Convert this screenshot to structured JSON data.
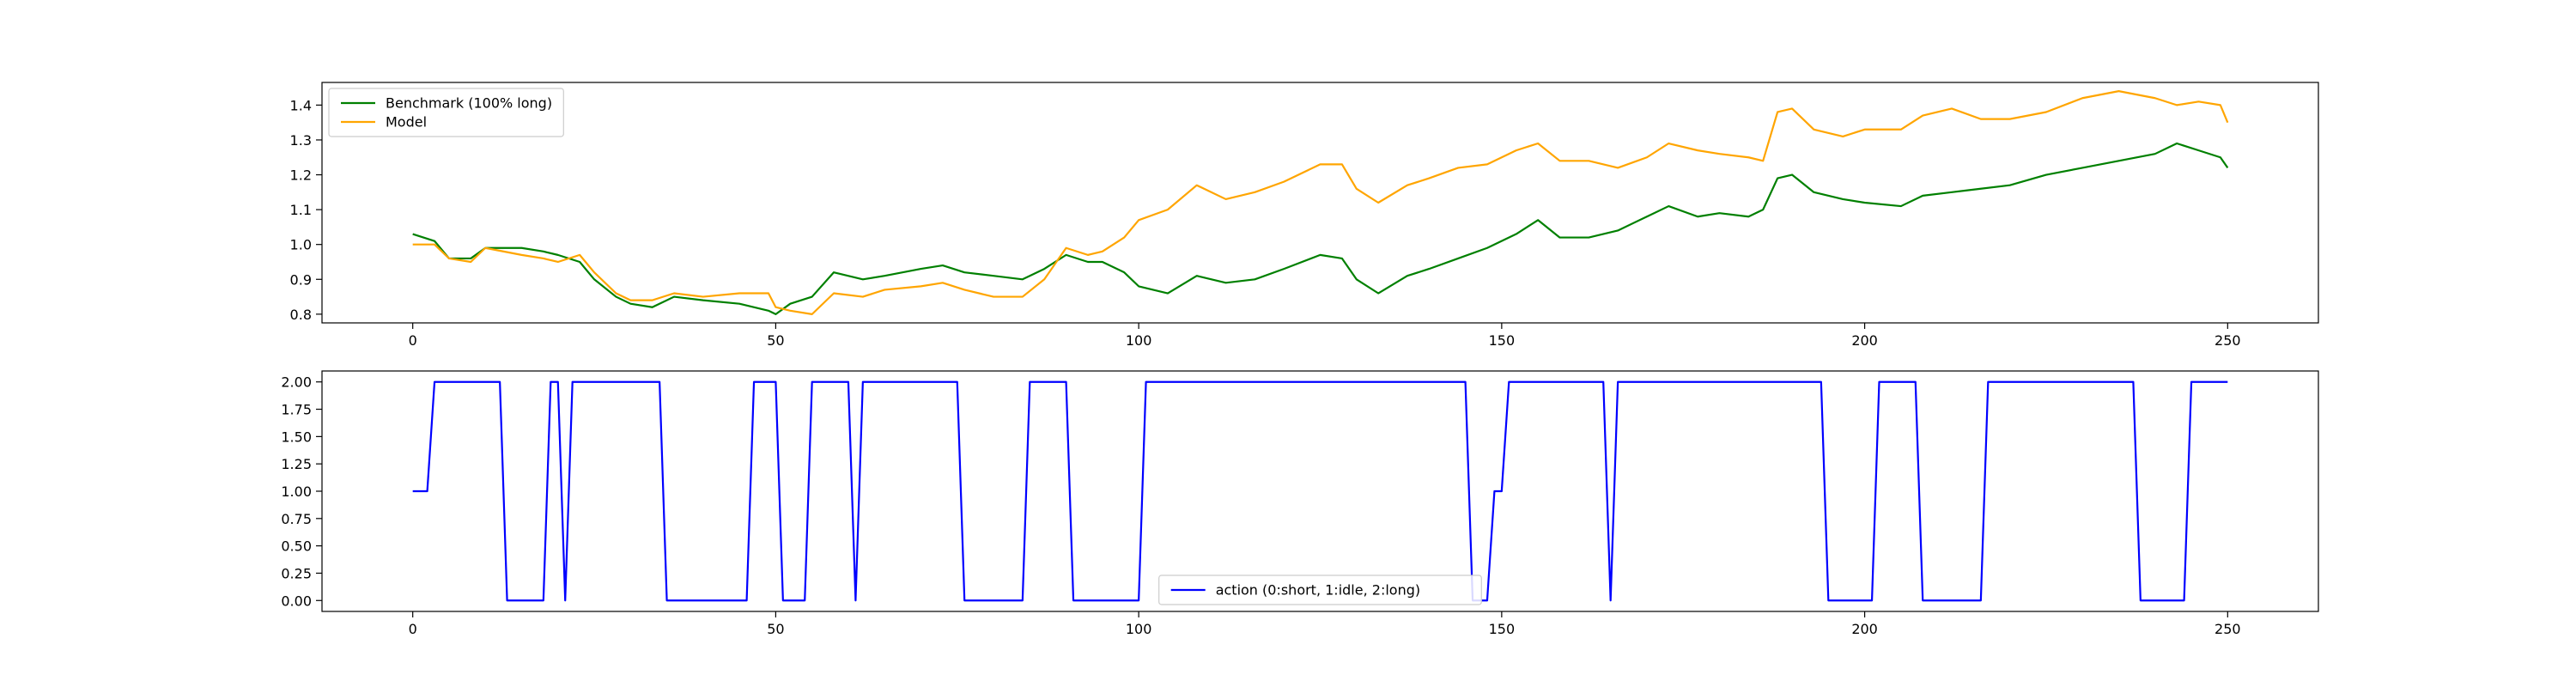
{
  "chart_data": [
    {
      "type": "line",
      "xlim": [
        -12.5,
        262.5
      ],
      "ylim": [
        0.775,
        1.465
      ],
      "xticks": [
        0,
        50,
        100,
        150,
        200,
        250
      ],
      "xtick_labels": [
        "0",
        "50",
        "100",
        "150",
        "200",
        "250"
      ],
      "yticks": [
        0.8,
        0.9,
        1.0,
        1.1,
        1.2,
        1.3,
        1.4
      ],
      "ytick_labels": [
        "0.8",
        "0.9",
        "1.0",
        "1.1",
        "1.2",
        "1.3",
        "1.4"
      ],
      "legend_position": "top-left",
      "grid": false,
      "series": [
        {
          "name": "Benchmark (100% long)",
          "color": "#008000",
          "points": [
            [
              0,
              1.03
            ],
            [
              3,
              1.01
            ],
            [
              5,
              0.96
            ],
            [
              8,
              0.96
            ],
            [
              10,
              0.99
            ],
            [
              15,
              0.99
            ],
            [
              18,
              0.98
            ],
            [
              20,
              0.97
            ],
            [
              23,
              0.95
            ],
            [
              25,
              0.9
            ],
            [
              28,
              0.85
            ],
            [
              30,
              0.83
            ],
            [
              33,
              0.82
            ],
            [
              36,
              0.85
            ],
            [
              40,
              0.84
            ],
            [
              45,
              0.83
            ],
            [
              49,
              0.81
            ],
            [
              50,
              0.8
            ],
            [
              52,
              0.83
            ],
            [
              55,
              0.85
            ],
            [
              58,
              0.92
            ],
            [
              62,
              0.9
            ],
            [
              65,
              0.91
            ],
            [
              70,
              0.93
            ],
            [
              73,
              0.94
            ],
            [
              76,
              0.92
            ],
            [
              80,
              0.91
            ],
            [
              84,
              0.9
            ],
            [
              87,
              0.93
            ],
            [
              90,
              0.97
            ],
            [
              93,
              0.95
            ],
            [
              95,
              0.95
            ],
            [
              98,
              0.92
            ],
            [
              100,
              0.88
            ],
            [
              104,
              0.86
            ],
            [
              108,
              0.91
            ],
            [
              112,
              0.89
            ],
            [
              116,
              0.9
            ],
            [
              120,
              0.93
            ],
            [
              125,
              0.97
            ],
            [
              128,
              0.96
            ],
            [
              130,
              0.9
            ],
            [
              133,
              0.86
            ],
            [
              137,
              0.91
            ],
            [
              140,
              0.93
            ],
            [
              144,
              0.96
            ],
            [
              148,
              0.99
            ],
            [
              152,
              1.03
            ],
            [
              155,
              1.07
            ],
            [
              158,
              1.02
            ],
            [
              162,
              1.02
            ],
            [
              166,
              1.04
            ],
            [
              170,
              1.08
            ],
            [
              173,
              1.11
            ],
            [
              177,
              1.08
            ],
            [
              180,
              1.09
            ],
            [
              184,
              1.08
            ],
            [
              186,
              1.1
            ],
            [
              188,
              1.19
            ],
            [
              190,
              1.2
            ],
            [
              193,
              1.15
            ],
            [
              197,
              1.13
            ],
            [
              200,
              1.12
            ],
            [
              205,
              1.11
            ],
            [
              208,
              1.14
            ],
            [
              212,
              1.15
            ],
            [
              216,
              1.16
            ],
            [
              220,
              1.17
            ],
            [
              225,
              1.2
            ],
            [
              230,
              1.22
            ],
            [
              235,
              1.24
            ],
            [
              240,
              1.26
            ],
            [
              243,
              1.29
            ],
            [
              246,
              1.27
            ],
            [
              249,
              1.25
            ],
            [
              250,
              1.22
            ]
          ]
        },
        {
          "name": "Model",
          "color": "#ffa500",
          "points": [
            [
              0,
              1.0
            ],
            [
              3,
              1.0
            ],
            [
              5,
              0.96
            ],
            [
              8,
              0.95
            ],
            [
              10,
              0.99
            ],
            [
              15,
              0.97
            ],
            [
              18,
              0.96
            ],
            [
              20,
              0.95
            ],
            [
              23,
              0.97
            ],
            [
              25,
              0.92
            ],
            [
              28,
              0.86
            ],
            [
              30,
              0.84
            ],
            [
              33,
              0.84
            ],
            [
              36,
              0.86
            ],
            [
              40,
              0.85
            ],
            [
              45,
              0.86
            ],
            [
              49,
              0.86
            ],
            [
              50,
              0.82
            ],
            [
              52,
              0.81
            ],
            [
              55,
              0.8
            ],
            [
              58,
              0.86
            ],
            [
              62,
              0.85
            ],
            [
              65,
              0.87
            ],
            [
              70,
              0.88
            ],
            [
              73,
              0.89
            ],
            [
              76,
              0.87
            ],
            [
              80,
              0.85
            ],
            [
              84,
              0.85
            ],
            [
              87,
              0.9
            ],
            [
              90,
              0.99
            ],
            [
              93,
              0.97
            ],
            [
              95,
              0.98
            ],
            [
              98,
              1.02
            ],
            [
              100,
              1.07
            ],
            [
              104,
              1.1
            ],
            [
              108,
              1.17
            ],
            [
              112,
              1.13
            ],
            [
              116,
              1.15
            ],
            [
              120,
              1.18
            ],
            [
              125,
              1.23
            ],
            [
              128,
              1.23
            ],
            [
              130,
              1.16
            ],
            [
              133,
              1.12
            ],
            [
              137,
              1.17
            ],
            [
              140,
              1.19
            ],
            [
              144,
              1.22
            ],
            [
              148,
              1.23
            ],
            [
              152,
              1.27
            ],
            [
              155,
              1.29
            ],
            [
              158,
              1.24
            ],
            [
              162,
              1.24
            ],
            [
              166,
              1.22
            ],
            [
              170,
              1.25
            ],
            [
              173,
              1.29
            ],
            [
              177,
              1.27
            ],
            [
              180,
              1.26
            ],
            [
              184,
              1.25
            ],
            [
              186,
              1.24
            ],
            [
              188,
              1.38
            ],
            [
              190,
              1.39
            ],
            [
              193,
              1.33
            ],
            [
              197,
              1.31
            ],
            [
              200,
              1.33
            ],
            [
              205,
              1.33
            ],
            [
              208,
              1.37
            ],
            [
              212,
              1.39
            ],
            [
              216,
              1.36
            ],
            [
              220,
              1.36
            ],
            [
              225,
              1.38
            ],
            [
              230,
              1.42
            ],
            [
              235,
              1.44
            ],
            [
              240,
              1.42
            ],
            [
              243,
              1.4
            ],
            [
              246,
              1.41
            ],
            [
              249,
              1.4
            ],
            [
              250,
              1.35
            ]
          ]
        }
      ]
    },
    {
      "type": "line",
      "xlim": [
        -12.5,
        262.5
      ],
      "ylim": [
        -0.1,
        2.1
      ],
      "xticks": [
        0,
        50,
        100,
        150,
        200,
        250
      ],
      "xtick_labels": [
        "0",
        "50",
        "100",
        "150",
        "200",
        "250"
      ],
      "yticks": [
        0.0,
        0.25,
        0.5,
        0.75,
        1.0,
        1.25,
        1.5,
        1.75,
        2.0
      ],
      "ytick_labels": [
        "0.00",
        "0.25",
        "0.50",
        "0.75",
        "1.00",
        "1.25",
        "1.50",
        "1.75",
        "2.00"
      ],
      "legend_position": "lower-center",
      "grid": false,
      "series": [
        {
          "name": "action (0:short, 1:idle, 2:long)",
          "color": "#0000ff",
          "points": [
            [
              0,
              1
            ],
            [
              2,
              1
            ],
            [
              3,
              2
            ],
            [
              12,
              2
            ],
            [
              13,
              0
            ],
            [
              18,
              0
            ],
            [
              19,
              2
            ],
            [
              20,
              2
            ],
            [
              21,
              0
            ],
            [
              22,
              2
            ],
            [
              34,
              2
            ],
            [
              35,
              0
            ],
            [
              46,
              0
            ],
            [
              47,
              2
            ],
            [
              50,
              2
            ],
            [
              51,
              0
            ],
            [
              54,
              0
            ],
            [
              55,
              2
            ],
            [
              60,
              2
            ],
            [
              61,
              0
            ],
            [
              62,
              2
            ],
            [
              75,
              2
            ],
            [
              76,
              0
            ],
            [
              84,
              0
            ],
            [
              85,
              2
            ],
            [
              90,
              2
            ],
            [
              91,
              0
            ],
            [
              100,
              0
            ],
            [
              101,
              2
            ],
            [
              145,
              2
            ],
            [
              146,
              0
            ],
            [
              148,
              0
            ],
            [
              149,
              1
            ],
            [
              150,
              1
            ],
            [
              151,
              2
            ],
            [
              164,
              2
            ],
            [
              165,
              0
            ],
            [
              166,
              2
            ],
            [
              194,
              2
            ],
            [
              195,
              0
            ],
            [
              201,
              0
            ],
            [
              202,
              2
            ],
            [
              207,
              2
            ],
            [
              208,
              0
            ],
            [
              216,
              0
            ],
            [
              217,
              2
            ],
            [
              237,
              2
            ],
            [
              238,
              0
            ],
            [
              244,
              0
            ],
            [
              245,
              2
            ],
            [
              250,
              2
            ]
          ]
        }
      ]
    }
  ]
}
